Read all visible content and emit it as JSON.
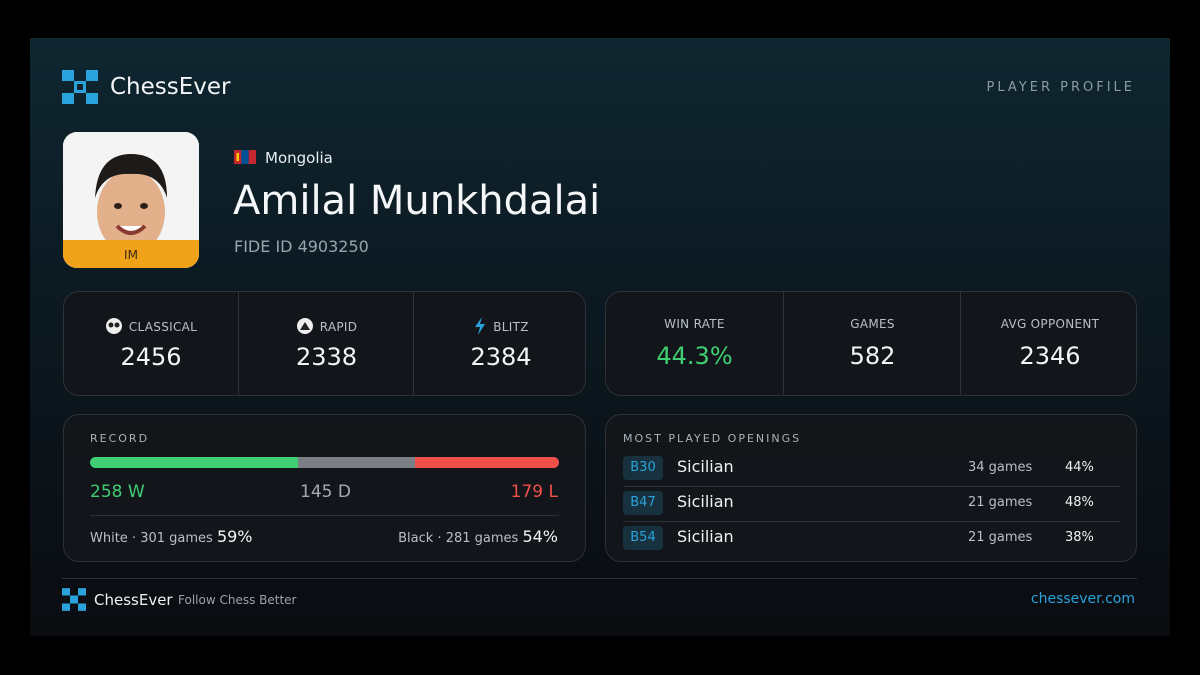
{
  "header": {
    "brand": "ChessEver",
    "label": "PLAYER PROFILE"
  },
  "player": {
    "country": "Mongolia",
    "name": "Amilal Munkhdalai",
    "fide": "FIDE ID 4903250",
    "title": "IM"
  },
  "ratings": [
    {
      "label": "CLASSICAL",
      "value": 2456
    },
    {
      "label": "RAPID",
      "value": 2338
    },
    {
      "label": "BLITZ",
      "value": 2384
    }
  ],
  "stats": [
    {
      "label": "WIN RATE",
      "value": "44.3%"
    },
    {
      "label": "GAMES",
      "value": 582
    },
    {
      "label": "AVG OPPONENT",
      "value": 2346
    }
  ],
  "record": {
    "title": "RECORD",
    "wins": {
      "value": 258,
      "label": "258 W"
    },
    "draws": {
      "value": 145,
      "label": "145 D"
    },
    "losses": {
      "value": 179,
      "label": "179 L"
    },
    "white": {
      "text": "White · 301 games",
      "pct": "59%"
    },
    "black": {
      "text": "Black · 281 games",
      "pct": "54%"
    }
  },
  "openings": {
    "title": "MOST PLAYED OPENINGS",
    "rows": [
      {
        "eco": "B30",
        "name": "Sicilian",
        "games": "34 games",
        "pct": "44%"
      },
      {
        "eco": "B47",
        "name": "Sicilian",
        "games": "21 games",
        "pct": "48%"
      },
      {
        "eco": "B54",
        "name": "Sicilian",
        "games": "21 games",
        "pct": "38%"
      }
    ]
  },
  "footer": {
    "brand": "ChessEver",
    "tagline": "Follow Chess Better",
    "url": "chessever.com"
  }
}
